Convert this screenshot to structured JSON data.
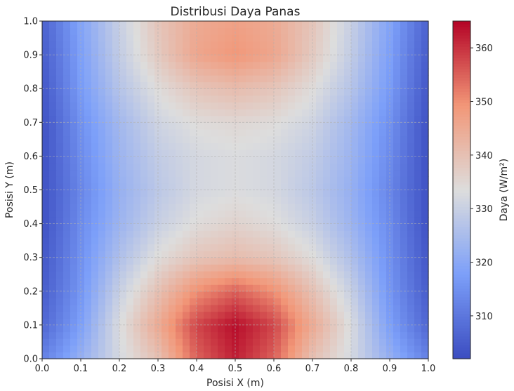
{
  "chart_data": {
    "type": "heatmap",
    "title": "Distribusi Daya Panas",
    "xlabel": "Posisi X (m)",
    "ylabel": "Posisi Y (m)",
    "xlim": [
      0.0,
      1.0
    ],
    "ylim": [
      0.0,
      1.0
    ],
    "x_ticks": [
      "0.0",
      "0.1",
      "0.2",
      "0.3",
      "0.4",
      "0.5",
      "0.6",
      "0.7",
      "0.8",
      "0.9",
      "1.0"
    ],
    "y_ticks": [
      "0.0",
      "0.1",
      "0.2",
      "0.3",
      "0.4",
      "0.5",
      "0.6",
      "0.7",
      "0.8",
      "0.9",
      "1.0"
    ],
    "grid": true,
    "colormap": "coolwarm",
    "colorbar": {
      "label": "Daya (W/m²)",
      "min": 302,
      "max": 365,
      "ticks": [
        "310",
        "320",
        "330",
        "340",
        "350",
        "360"
      ]
    },
    "x": [
      0.0,
      0.1,
      0.2,
      0.3,
      0.4,
      0.5,
      0.6,
      0.7,
      0.8,
      0.9,
      1.0
    ],
    "y": [
      0.0,
      0.1,
      0.2,
      0.3,
      0.4,
      0.5,
      0.6,
      0.7,
      0.8,
      0.9,
      1.0
    ],
    "values": [
      [
        312,
        322,
        332,
        340,
        355,
        362,
        355,
        340,
        332,
        322,
        312
      ],
      [
        307,
        318,
        333,
        345,
        358,
        364,
        358,
        345,
        333,
        318,
        307
      ],
      [
        305,
        316,
        330,
        340,
        350,
        355,
        350,
        340,
        330,
        316,
        305
      ],
      [
        304,
        315,
        326,
        334,
        339,
        341,
        339,
        334,
        326,
        315,
        304
      ],
      [
        303,
        314,
        323,
        330,
        334,
        336,
        334,
        330,
        323,
        314,
        303
      ],
      [
        303,
        313,
        322,
        328,
        332,
        333,
        332,
        328,
        322,
        313,
        303
      ],
      [
        303,
        314,
        323,
        329,
        332,
        333,
        332,
        329,
        323,
        314,
        303
      ],
      [
        303,
        315,
        324,
        331,
        334,
        335,
        334,
        331,
        324,
        315,
        303
      ],
      [
        304,
        317,
        327,
        334,
        339,
        341,
        339,
        334,
        327,
        317,
        304
      ],
      [
        305,
        318,
        329,
        338,
        346,
        349,
        346,
        338,
        329,
        318,
        305
      ],
      [
        306,
        319,
        330,
        339,
        345,
        347,
        345,
        339,
        330,
        319,
        306
      ]
    ]
  }
}
